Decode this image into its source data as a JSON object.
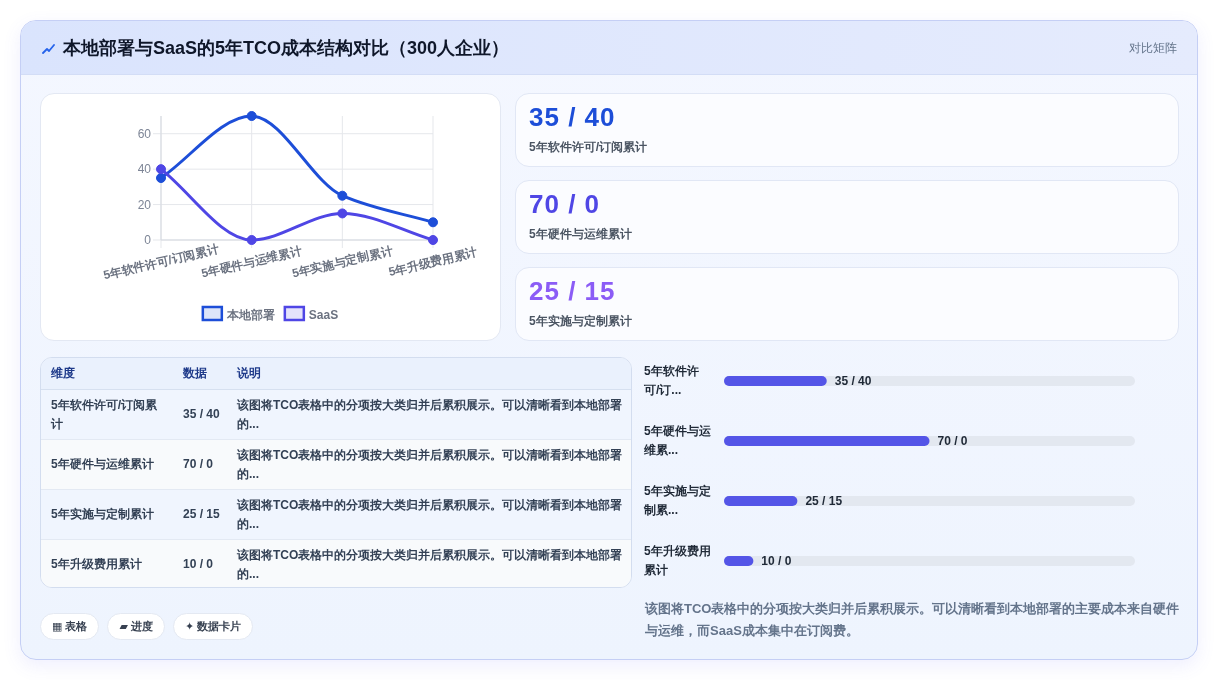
{
  "chart_data": [
    {
      "type": "other",
      "title": "本地部署与SaaS的5年TCO成本结构对比（300人企业）",
      "subtitle": "对比矩阵"
    },
    {
      "type": "line",
      "categories": [
        "5年软件许可/订阅累计",
        "5年硬件与运维累计",
        "5年实施与定制累计",
        "5年升级费用累计"
      ],
      "series": [
        {
          "name": "本地部署",
          "color": "#1d4ed8",
          "values": [
            35,
            70,
            25,
            10
          ]
        },
        {
          "name": "SaaS",
          "color": "#4f46e5",
          "values": [
            40,
            0,
            15,
            0
          ]
        }
      ],
      "ylim": [
        0,
        70
      ],
      "yticks": [
        0,
        20,
        40,
        60
      ],
      "grid": true,
      "legend": "bottom",
      "marker": "circle"
    },
    {
      "type": "other",
      "categories": [
        "5年软件许可/订阅累计",
        "5年硬件与运维累计",
        "5年实施与定制累计"
      ],
      "value_labels": [
        "35 / 40",
        "70 / 0",
        "25 / 15"
      ]
    },
    {
      "type": "other",
      "categories": [
        "维度",
        "数据",
        "说明"
      ],
      "cell_labels": [
        [
          "5年软件许可/订阅累计",
          "35 / 40",
          "该图将TCO表格中的分项按大类归并后累积展示。可以清晰看到本地部署的..."
        ],
        [
          "5年硬件与运维累计",
          "70 / 0",
          "该图将TCO表格中的分项按大类归并后累积展示。可以清晰看到本地部署的..."
        ],
        [
          "5年实施与定制累计",
          "25 / 15",
          "该图将TCO表格中的分项按大类归并后累积展示。可以清晰看到本地部署的..."
        ],
        [
          "5年升级费用累计",
          "10 / 0",
          "该图将TCO表格中的分项按大类归并后累积展示。可以清晰看到本地部署的..."
        ]
      ]
    },
    {
      "type": "bar",
      "orientation": "horizontal",
      "categories": [
        "5年软件许可/订...",
        "5年硬件与运维累...",
        "5年实施与定制累...",
        "5年升级费用累计"
      ],
      "values": [
        35,
        70,
        25,
        10
      ],
      "value_labels": [
        "35 / 40",
        "70 / 0",
        "25 / 15",
        "10 / 0"
      ],
      "color": "#5455e7",
      "annotations": [
        "该图将TCO表格中的分项按大类归并后累积展示。可以清晰看到本地部署的主要成本来自硬件与运维，而SaaS成本集中在订阅费。"
      ]
    },
    {
      "type": "other",
      "annotations": [
        "▦ 表格",
        "▰ 进度",
        "✦ 数据卡片"
      ]
    }
  ]
}
